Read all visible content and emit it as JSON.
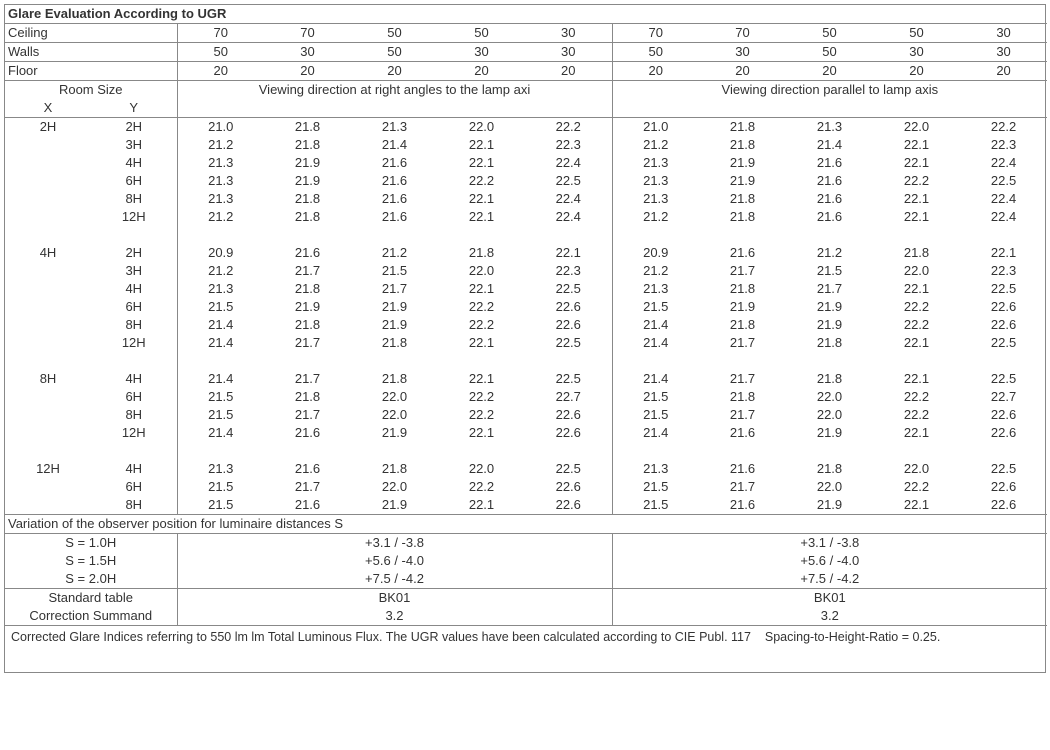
{
  "title": "Glare Evaluation According to UGR",
  "headerRows": [
    {
      "label": "Ceiling",
      "left": [
        "70",
        "70",
        "50",
        "50",
        "30"
      ],
      "right": [
        "70",
        "70",
        "50",
        "50",
        "30"
      ]
    },
    {
      "label": "Walls",
      "left": [
        "50",
        "30",
        "50",
        "30",
        "30"
      ],
      "right": [
        "50",
        "30",
        "50",
        "30",
        "30"
      ]
    },
    {
      "label": "Floor",
      "left": [
        "20",
        "20",
        "20",
        "20",
        "20"
      ],
      "right": [
        "20",
        "20",
        "20",
        "20",
        "20"
      ]
    }
  ],
  "roomSizeLabel": "Room Size",
  "xLabel": "X",
  "yLabel": "Y",
  "leftDirection": "Viewing direction at right angles to the lamp axi",
  "rightDirection": "Viewing direction parallel to lamp axis",
  "groups": [
    {
      "x": "2H",
      "rows": [
        {
          "y": "2H",
          "l": [
            "21.0",
            "21.8",
            "21.3",
            "22.0",
            "22.2"
          ],
          "r": [
            "21.0",
            "21.8",
            "21.3",
            "22.0",
            "22.2"
          ]
        },
        {
          "y": "3H",
          "l": [
            "21.2",
            "21.8",
            "21.4",
            "22.1",
            "22.3"
          ],
          "r": [
            "21.2",
            "21.8",
            "21.4",
            "22.1",
            "22.3"
          ]
        },
        {
          "y": "4H",
          "l": [
            "21.3",
            "21.9",
            "21.6",
            "22.1",
            "22.4"
          ],
          "r": [
            "21.3",
            "21.9",
            "21.6",
            "22.1",
            "22.4"
          ]
        },
        {
          "y": "6H",
          "l": [
            "21.3",
            "21.9",
            "21.6",
            "22.2",
            "22.5"
          ],
          "r": [
            "21.3",
            "21.9",
            "21.6",
            "22.2",
            "22.5"
          ]
        },
        {
          "y": "8H",
          "l": [
            "21.3",
            "21.8",
            "21.6",
            "22.1",
            "22.4"
          ],
          "r": [
            "21.3",
            "21.8",
            "21.6",
            "22.1",
            "22.4"
          ]
        },
        {
          "y": "12H",
          "l": [
            "21.2",
            "21.8",
            "21.6",
            "22.1",
            "22.4"
          ],
          "r": [
            "21.2",
            "21.8",
            "21.6",
            "22.1",
            "22.4"
          ]
        }
      ]
    },
    {
      "x": "4H",
      "rows": [
        {
          "y": "2H",
          "l": [
            "20.9",
            "21.6",
            "21.2",
            "21.8",
            "22.1"
          ],
          "r": [
            "20.9",
            "21.6",
            "21.2",
            "21.8",
            "22.1"
          ]
        },
        {
          "y": "3H",
          "l": [
            "21.2",
            "21.7",
            "21.5",
            "22.0",
            "22.3"
          ],
          "r": [
            "21.2",
            "21.7",
            "21.5",
            "22.0",
            "22.3"
          ]
        },
        {
          "y": "4H",
          "l": [
            "21.3",
            "21.8",
            "21.7",
            "22.1",
            "22.5"
          ],
          "r": [
            "21.3",
            "21.8",
            "21.7",
            "22.1",
            "22.5"
          ]
        },
        {
          "y": "6H",
          "l": [
            "21.5",
            "21.9",
            "21.9",
            "22.2",
            "22.6"
          ],
          "r": [
            "21.5",
            "21.9",
            "21.9",
            "22.2",
            "22.6"
          ]
        },
        {
          "y": "8H",
          "l": [
            "21.4",
            "21.8",
            "21.9",
            "22.2",
            "22.6"
          ],
          "r": [
            "21.4",
            "21.8",
            "21.9",
            "22.2",
            "22.6"
          ]
        },
        {
          "y": "12H",
          "l": [
            "21.4",
            "21.7",
            "21.8",
            "22.1",
            "22.5"
          ],
          "r": [
            "21.4",
            "21.7",
            "21.8",
            "22.1",
            "22.5"
          ]
        }
      ]
    },
    {
      "x": "8H",
      "rows": [
        {
          "y": "4H",
          "l": [
            "21.4",
            "21.7",
            "21.8",
            "22.1",
            "22.5"
          ],
          "r": [
            "21.4",
            "21.7",
            "21.8",
            "22.1",
            "22.5"
          ]
        },
        {
          "y": "6H",
          "l": [
            "21.5",
            "21.8",
            "22.0",
            "22.2",
            "22.7"
          ],
          "r": [
            "21.5",
            "21.8",
            "22.0",
            "22.2",
            "22.7"
          ]
        },
        {
          "y": "8H",
          "l": [
            "21.5",
            "21.7",
            "22.0",
            "22.2",
            "22.6"
          ],
          "r": [
            "21.5",
            "21.7",
            "22.0",
            "22.2",
            "22.6"
          ]
        },
        {
          "y": "12H",
          "l": [
            "21.4",
            "21.6",
            "21.9",
            "22.1",
            "22.6"
          ],
          "r": [
            "21.4",
            "21.6",
            "21.9",
            "22.1",
            "22.6"
          ]
        }
      ]
    },
    {
      "x": "12H",
      "rows": [
        {
          "y": "4H",
          "l": [
            "21.3",
            "21.6",
            "21.8",
            "22.0",
            "22.5"
          ],
          "r": [
            "21.3",
            "21.6",
            "21.8",
            "22.0",
            "22.5"
          ]
        },
        {
          "y": "6H",
          "l": [
            "21.5",
            "21.7",
            "22.0",
            "22.2",
            "22.6"
          ],
          "r": [
            "21.5",
            "21.7",
            "22.0",
            "22.2",
            "22.6"
          ]
        },
        {
          "y": "8H",
          "l": [
            "21.5",
            "21.6",
            "21.9",
            "22.1",
            "22.6"
          ],
          "r": [
            "21.5",
            "21.6",
            "21.9",
            "22.1",
            "22.6"
          ]
        }
      ]
    }
  ],
  "variationLabel": "Variation of the observer position for luminaire distances S",
  "variationRows": [
    {
      "s": "S = 1.0H",
      "left": "+3.1 / -3.8",
      "right": "+3.1 / -3.8"
    },
    {
      "s": "S = 1.5H",
      "left": "+5.6 / -4.0",
      "right": "+5.6 / -4.0"
    },
    {
      "s": "S = 2.0H",
      "left": "+7.5 / -4.2",
      "right": "+7.5 / -4.2"
    }
  ],
  "standardTableLabel": "Standard table",
  "standardTableLeft": "BK01",
  "standardTableRight": "BK01",
  "correctionLabel": "Correction Summand",
  "correctionLeft": "3.2",
  "correctionRight": "3.2",
  "footnote": "Corrected Glare Indices referring to 550 lm lm Total Luminous Flux. The UGR values have been calculated according to CIE Publ. 117    Spacing-to-Height-Ratio = 0.25."
}
